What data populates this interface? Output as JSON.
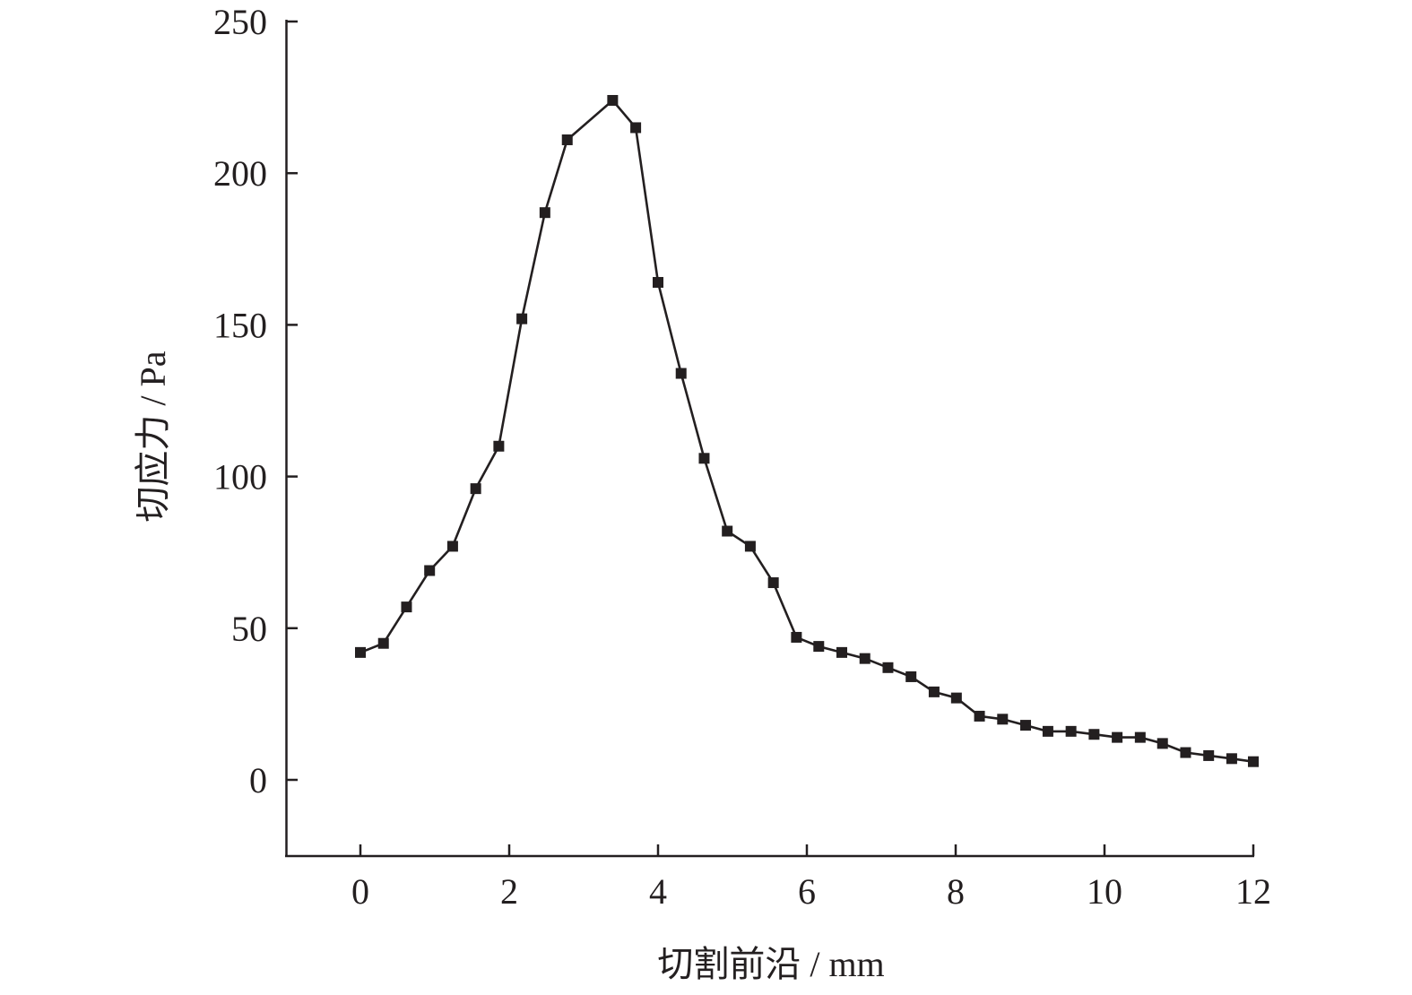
{
  "chart_data": {
    "type": "line",
    "title": "",
    "xlabel": "切割前沿 / mm",
    "ylabel": "切应力 / Pa",
    "xlim": [
      -1,
      12
    ],
    "ylim": [
      -25,
      250
    ],
    "x_ticks": [
      0,
      2,
      4,
      6,
      8,
      10,
      12
    ],
    "y_ticks": [
      0,
      50,
      100,
      150,
      200,
      250
    ],
    "grid": false,
    "legend": "none",
    "marker": "square",
    "color": "#231f20",
    "series": [
      {
        "x": [
          0,
          0.31,
          0.62,
          0.93,
          1.24,
          1.55,
          1.86,
          2.17,
          2.48,
          2.78,
          3.39,
          3.7,
          4.0,
          4.31,
          4.62,
          4.93,
          5.24,
          5.55,
          5.86,
          6.16,
          6.47,
          6.78,
          7.09,
          7.4,
          7.71,
          8.01,
          8.32,
          8.63,
          8.94,
          9.24,
          9.55,
          9.86,
          10.17,
          10.48,
          10.78,
          11.09,
          11.4,
          11.71,
          12.0
        ],
        "y": [
          42,
          45,
          57,
          69,
          77,
          96,
          110,
          152,
          187,
          211,
          224,
          215,
          164,
          134,
          106,
          82,
          77,
          65,
          47,
          44,
          42,
          40,
          37,
          34,
          29,
          27,
          21,
          20,
          18,
          16,
          16,
          15,
          14,
          14,
          12,
          9,
          8,
          7,
          6
        ]
      }
    ]
  }
}
